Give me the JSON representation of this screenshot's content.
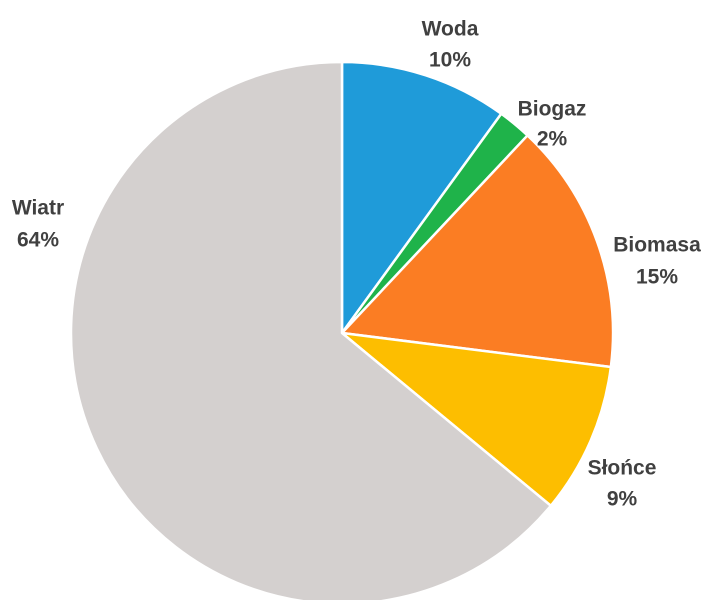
{
  "chart_data": {
    "type": "pie",
    "title": "",
    "start_angle_deg": 0,
    "direction": "clockwise",
    "slices": [
      {
        "label": "Woda",
        "value": 10,
        "value_label": "10%",
        "color": "#1f9bd9"
      },
      {
        "label": "Biogaz",
        "value": 2,
        "value_label": "2%",
        "color": "#1fb34a"
      },
      {
        "label": "Biomasa",
        "value": 15,
        "value_label": "15%",
        "color": "#fb7d23"
      },
      {
        "label": "Słońce",
        "value": 9,
        "value_label": "9%",
        "color": "#fdbe00"
      },
      {
        "label": "Wiatr",
        "value": 64,
        "value_label": "64%",
        "color": "#d4d0cf"
      }
    ],
    "slice_border_color": "#ffffff"
  }
}
